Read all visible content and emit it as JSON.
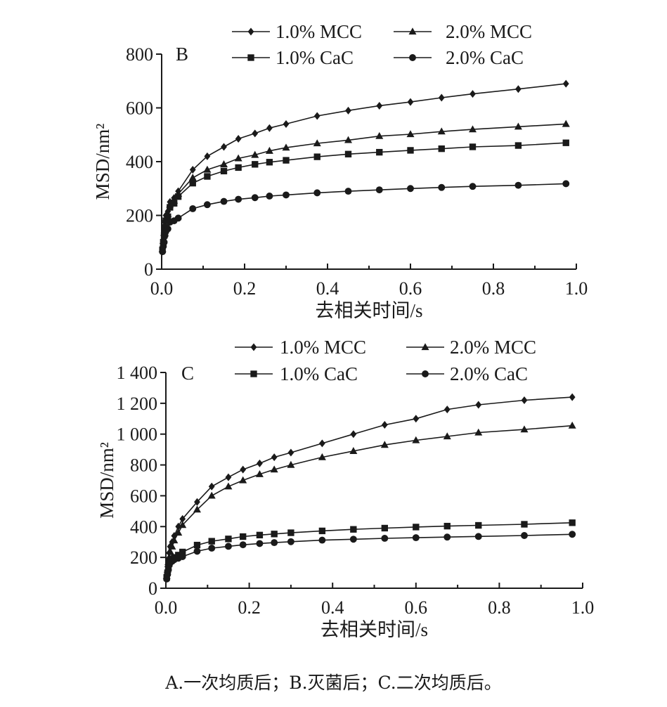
{
  "chart_data": [
    {
      "type": "line",
      "panel_label": "B",
      "xlabel": "去相关时间/s",
      "ylabel": "MSD/nm²",
      "xlim": [
        0,
        1.0
      ],
      "ylim": [
        0,
        800
      ],
      "xticks": [
        "0.0",
        "0.2",
        "0.4",
        "0.6",
        "0.8",
        "1.0"
      ],
      "yticks": [
        "0",
        "200",
        "400",
        "600",
        "800"
      ],
      "legend_position": "top",
      "series": [
        {
          "name": "1.0% MCC",
          "marker": "diamond",
          "x": [
            0.002,
            0.004,
            0.006,
            0.008,
            0.01,
            0.015,
            0.02,
            0.03,
            0.04,
            0.075,
            0.11,
            0.15,
            0.185,
            0.225,
            0.26,
            0.3,
            0.375,
            0.45,
            0.525,
            0.6,
            0.675,
            0.75,
            0.86,
            0.975
          ],
          "y": [
            80,
            110,
            145,
            175,
            200,
            215,
            250,
            265,
            290,
            370,
            420,
            455,
            485,
            505,
            525,
            540,
            570,
            590,
            608,
            622,
            638,
            652,
            670,
            690
          ]
        },
        {
          "name": "2.0% MCC",
          "marker": "triangle",
          "x": [
            0.002,
            0.004,
            0.006,
            0.008,
            0.01,
            0.015,
            0.02,
            0.03,
            0.04,
            0.075,
            0.11,
            0.15,
            0.185,
            0.225,
            0.26,
            0.3,
            0.375,
            0.45,
            0.525,
            0.6,
            0.675,
            0.75,
            0.86,
            0.975
          ],
          "y": [
            75,
            105,
            135,
            165,
            190,
            205,
            240,
            255,
            280,
            340,
            370,
            390,
            412,
            425,
            440,
            452,
            468,
            480,
            495,
            502,
            512,
            520,
            530,
            540
          ]
        },
        {
          "name": "1.0% CaC",
          "marker": "square",
          "x": [
            0.002,
            0.004,
            0.006,
            0.008,
            0.01,
            0.015,
            0.02,
            0.03,
            0.04,
            0.075,
            0.11,
            0.15,
            0.185,
            0.225,
            0.26,
            0.3,
            0.375,
            0.45,
            0.525,
            0.6,
            0.675,
            0.75,
            0.86,
            0.975
          ],
          "y": [
            72,
            100,
            125,
            155,
            180,
            195,
            230,
            245,
            270,
            320,
            345,
            365,
            378,
            390,
            398,
            405,
            418,
            428,
            435,
            442,
            448,
            455,
            460,
            470
          ]
        },
        {
          "name": "2.0% CaC",
          "marker": "circle",
          "x": [
            0.002,
            0.004,
            0.006,
            0.008,
            0.01,
            0.015,
            0.02,
            0.03,
            0.04,
            0.075,
            0.11,
            0.15,
            0.185,
            0.225,
            0.26,
            0.3,
            0.375,
            0.45,
            0.525,
            0.6,
            0.675,
            0.75,
            0.86,
            0.975
          ],
          "y": [
            65,
            85,
            100,
            125,
            140,
            150,
            175,
            180,
            190,
            225,
            240,
            252,
            260,
            266,
            272,
            276,
            284,
            290,
            295,
            300,
            304,
            308,
            312,
            318
          ]
        }
      ]
    },
    {
      "type": "line",
      "panel_label": "C",
      "xlabel": "去相关时间/s",
      "ylabel": "MSD/nm²",
      "xlim": [
        0,
        1.0
      ],
      "ylim": [
        0,
        1400
      ],
      "xticks": [
        "0.0",
        "0.2",
        "0.4",
        "0.6",
        "0.8",
        "1.0"
      ],
      "yticks": [
        "0",
        "200",
        "400",
        "600",
        "800",
        "1 000",
        "1 200",
        "1 400"
      ],
      "legend_position": "top",
      "series": [
        {
          "name": "1.0% MCC",
          "marker": "diamond",
          "x": [
            0.002,
            0.004,
            0.006,
            0.008,
            0.01,
            0.015,
            0.02,
            0.03,
            0.04,
            0.075,
            0.11,
            0.15,
            0.185,
            0.225,
            0.26,
            0.3,
            0.375,
            0.45,
            0.525,
            0.6,
            0.675,
            0.75,
            0.86,
            0.975
          ],
          "y": [
            90,
            140,
            190,
            230,
            270,
            300,
            340,
            400,
            450,
            560,
            660,
            720,
            770,
            810,
            850,
            880,
            940,
            1000,
            1060,
            1100,
            1160,
            1190,
            1220,
            1240
          ]
        },
        {
          "name": "2.0% MCC",
          "marker": "triangle",
          "x": [
            0.002,
            0.004,
            0.006,
            0.008,
            0.01,
            0.015,
            0.02,
            0.03,
            0.04,
            0.075,
            0.11,
            0.15,
            0.185,
            0.225,
            0.26,
            0.3,
            0.375,
            0.45,
            0.525,
            0.6,
            0.675,
            0.75,
            0.86,
            0.975
          ],
          "y": [
            80,
            120,
            170,
            200,
            240,
            270,
            310,
            360,
            410,
            510,
            600,
            660,
            700,
            740,
            770,
            800,
            850,
            890,
            930,
            960,
            985,
            1010,
            1030,
            1055
          ]
        },
        {
          "name": "1.0% CaC",
          "marker": "square",
          "x": [
            0.002,
            0.004,
            0.006,
            0.008,
            0.01,
            0.015,
            0.02,
            0.03,
            0.04,
            0.075,
            0.11,
            0.15,
            0.185,
            0.225,
            0.26,
            0.3,
            0.375,
            0.45,
            0.525,
            0.6,
            0.675,
            0.75,
            0.86,
            0.975
          ],
          "y": [
            70,
            100,
            130,
            160,
            180,
            190,
            200,
            215,
            235,
            280,
            305,
            320,
            335,
            345,
            352,
            360,
            372,
            382,
            390,
            397,
            403,
            408,
            415,
            425
          ]
        },
        {
          "name": "2.0% CaC",
          "marker": "circle",
          "x": [
            0.002,
            0.004,
            0.006,
            0.008,
            0.01,
            0.015,
            0.02,
            0.03,
            0.04,
            0.075,
            0.11,
            0.15,
            0.185,
            0.225,
            0.26,
            0.3,
            0.375,
            0.45,
            0.525,
            0.6,
            0.675,
            0.75,
            0.86,
            0.975
          ],
          "y": [
            60,
            90,
            120,
            150,
            165,
            175,
            185,
            195,
            205,
            240,
            260,
            272,
            282,
            290,
            296,
            302,
            312,
            318,
            324,
            328,
            332,
            336,
            342,
            350
          ]
        }
      ]
    }
  ],
  "caption": "A.一次均质后；B.灭菌后；C.二次均质后。"
}
